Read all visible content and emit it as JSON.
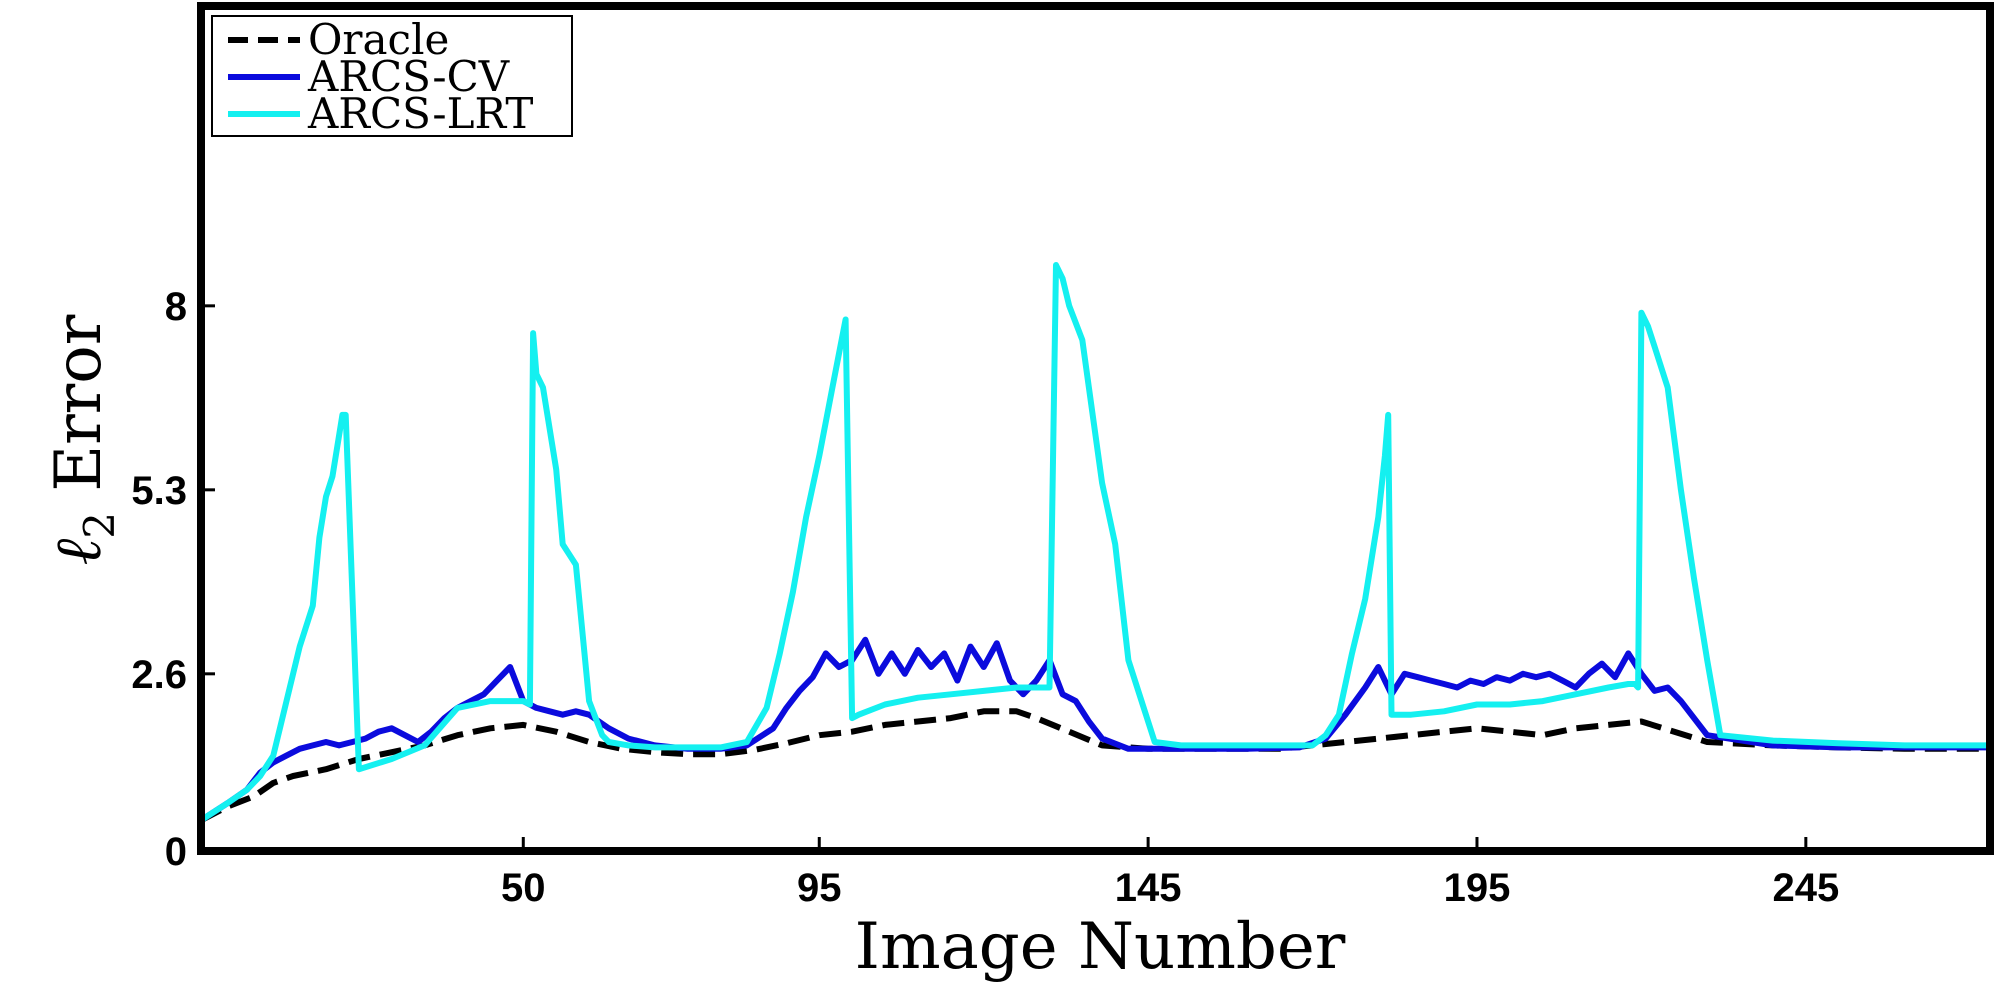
{
  "chart_data": {
    "type": "line",
    "xlabel": "Image Number",
    "ylabel": "ℓ₂ Error",
    "ylabel_main": "ℓ",
    "ylabel_sub": "2",
    "ylabel_rest": " Error",
    "xlim": [
      1,
      273
    ],
    "ylim": [
      0,
      12.4
    ],
    "xticks": [
      50,
      95,
      145,
      195,
      245
    ],
    "yticks": [
      0,
      2.6,
      5.3,
      8
    ],
    "ytick_labels": [
      "0",
      "2.6",
      "5.3",
      "8"
    ],
    "grid": false,
    "legend_position": "top-left",
    "series": [
      {
        "name": "Oracle",
        "color": "#000000",
        "dash": "dashed",
        "x": [
          1,
          5,
          9,
          12,
          15,
          20,
          25,
          30,
          35,
          40,
          45,
          50,
          55,
          60,
          65,
          70,
          75,
          80,
          85,
          90,
          95,
          100,
          105,
          110,
          115,
          120,
          125,
          128,
          133,
          138,
          145,
          155,
          165,
          175,
          180,
          185,
          190,
          195,
          200,
          205,
          210,
          215,
          220,
          225,
          230,
          240,
          250,
          260,
          273
        ],
        "y": [
          0.45,
          0.65,
          0.8,
          1.0,
          1.1,
          1.2,
          1.35,
          1.45,
          1.55,
          1.7,
          1.8,
          1.85,
          1.75,
          1.6,
          1.5,
          1.45,
          1.42,
          1.42,
          1.48,
          1.58,
          1.7,
          1.75,
          1.85,
          1.9,
          1.95,
          2.05,
          2.05,
          1.95,
          1.75,
          1.55,
          1.5,
          1.5,
          1.5,
          1.6,
          1.65,
          1.7,
          1.75,
          1.8,
          1.75,
          1.7,
          1.8,
          1.85,
          1.9,
          1.75,
          1.6,
          1.55,
          1.52,
          1.5,
          1.5
        ]
      },
      {
        "name": "ARCS-CV",
        "color": "#0b0bdd",
        "dash": "solid",
        "x": [
          1,
          5,
          8,
          10,
          12,
          14,
          16,
          18,
          20,
          22,
          24,
          26,
          28,
          30,
          32,
          34,
          36,
          38,
          40,
          42,
          44,
          46,
          48,
          50,
          52,
          54,
          56,
          58,
          60,
          63,
          66,
          70,
          75,
          80,
          84,
          88,
          90,
          92,
          94,
          96,
          98,
          100,
          102,
          104,
          106,
          108,
          110,
          112,
          114,
          116,
          118,
          120,
          122,
          124,
          126,
          128,
          130,
          132,
          134,
          136,
          138,
          142,
          150,
          160,
          168,
          172,
          175,
          178,
          180,
          182,
          184,
          186,
          188,
          190,
          192,
          194,
          196,
          198,
          200,
          202,
          204,
          206,
          208,
          210,
          212,
          214,
          216,
          218,
          220,
          222,
          224,
          226,
          230,
          240,
          250,
          260,
          273
        ],
        "y": [
          0.45,
          0.7,
          0.9,
          1.15,
          1.3,
          1.4,
          1.5,
          1.55,
          1.6,
          1.55,
          1.6,
          1.65,
          1.75,
          1.8,
          1.7,
          1.6,
          1.75,
          1.95,
          2.1,
          2.2,
          2.3,
          2.5,
          2.7,
          2.2,
          2.1,
          2.05,
          2.0,
          2.05,
          2.0,
          1.8,
          1.65,
          1.55,
          1.5,
          1.5,
          1.55,
          1.8,
          2.1,
          2.35,
          2.55,
          2.9,
          2.7,
          2.8,
          3.1,
          2.6,
          2.9,
          2.6,
          2.95,
          2.7,
          2.9,
          2.5,
          3.0,
          2.7,
          3.05,
          2.5,
          2.3,
          2.5,
          2.8,
          2.3,
          2.2,
          1.9,
          1.65,
          1.5,
          1.5,
          1.5,
          1.52,
          1.65,
          2.0,
          2.4,
          2.7,
          2.3,
          2.6,
          2.55,
          2.5,
          2.45,
          2.4,
          2.5,
          2.45,
          2.55,
          2.5,
          2.6,
          2.55,
          2.6,
          2.5,
          2.4,
          2.6,
          2.75,
          2.55,
          2.9,
          2.6,
          2.35,
          2.4,
          2.2,
          1.7,
          1.55,
          1.52,
          1.52,
          1.52
        ]
      },
      {
        "name": "ARCS-LRT",
        "color": "#14f0f0",
        "dash": "solid",
        "x": [
          1,
          5,
          8,
          10,
          12,
          14,
          16,
          18,
          19,
          20,
          21,
          22,
          22.5,
          23,
          25,
          30,
          35,
          40,
          45,
          50,
          51,
          51.5,
          52,
          53,
          55,
          56,
          58,
          60,
          62,
          63,
          66,
          70,
          75,
          80,
          84,
          87,
          89,
          91,
          93,
          95,
          97,
          98,
          99,
          100,
          101,
          105,
          110,
          115,
          120,
          125,
          130,
          131,
          132,
          133,
          135,
          136,
          138,
          140,
          142,
          146,
          150,
          160,
          170,
          172,
          174,
          176,
          178,
          180,
          181,
          181.5,
          182,
          185,
          190,
          195,
          200,
          205,
          210,
          215,
          218,
          219,
          219.5,
          220,
          221,
          222,
          224,
          226,
          228,
          230,
          232,
          240,
          250,
          260,
          273
        ],
        "y": [
          0.45,
          0.7,
          0.9,
          1.1,
          1.4,
          2.2,
          3.0,
          3.6,
          4.6,
          5.2,
          5.5,
          6.1,
          6.4,
          6.4,
          1.2,
          1.35,
          1.55,
          2.1,
          2.2,
          2.2,
          2.15,
          7.6,
          7.0,
          6.8,
          5.6,
          4.5,
          4.2,
          2.2,
          1.7,
          1.6,
          1.55,
          1.52,
          1.52,
          1.52,
          1.6,
          2.1,
          2.9,
          3.8,
          4.9,
          5.8,
          6.8,
          7.3,
          7.8,
          1.95,
          2.0,
          2.15,
          2.25,
          2.3,
          2.35,
          2.4,
          2.4,
          8.6,
          8.4,
          8.0,
          7.5,
          6.8,
          5.4,
          4.5,
          2.8,
          1.6,
          1.55,
          1.55,
          1.55,
          1.7,
          2.0,
          2.9,
          3.7,
          4.9,
          5.8,
          6.4,
          2.0,
          2.0,
          2.05,
          2.15,
          2.15,
          2.2,
          2.3,
          2.4,
          2.45,
          2.45,
          2.4,
          7.9,
          7.7,
          7.4,
          6.8,
          5.3,
          4.0,
          2.8,
          1.7,
          1.62,
          1.58,
          1.55,
          1.55
        ]
      }
    ]
  }
}
